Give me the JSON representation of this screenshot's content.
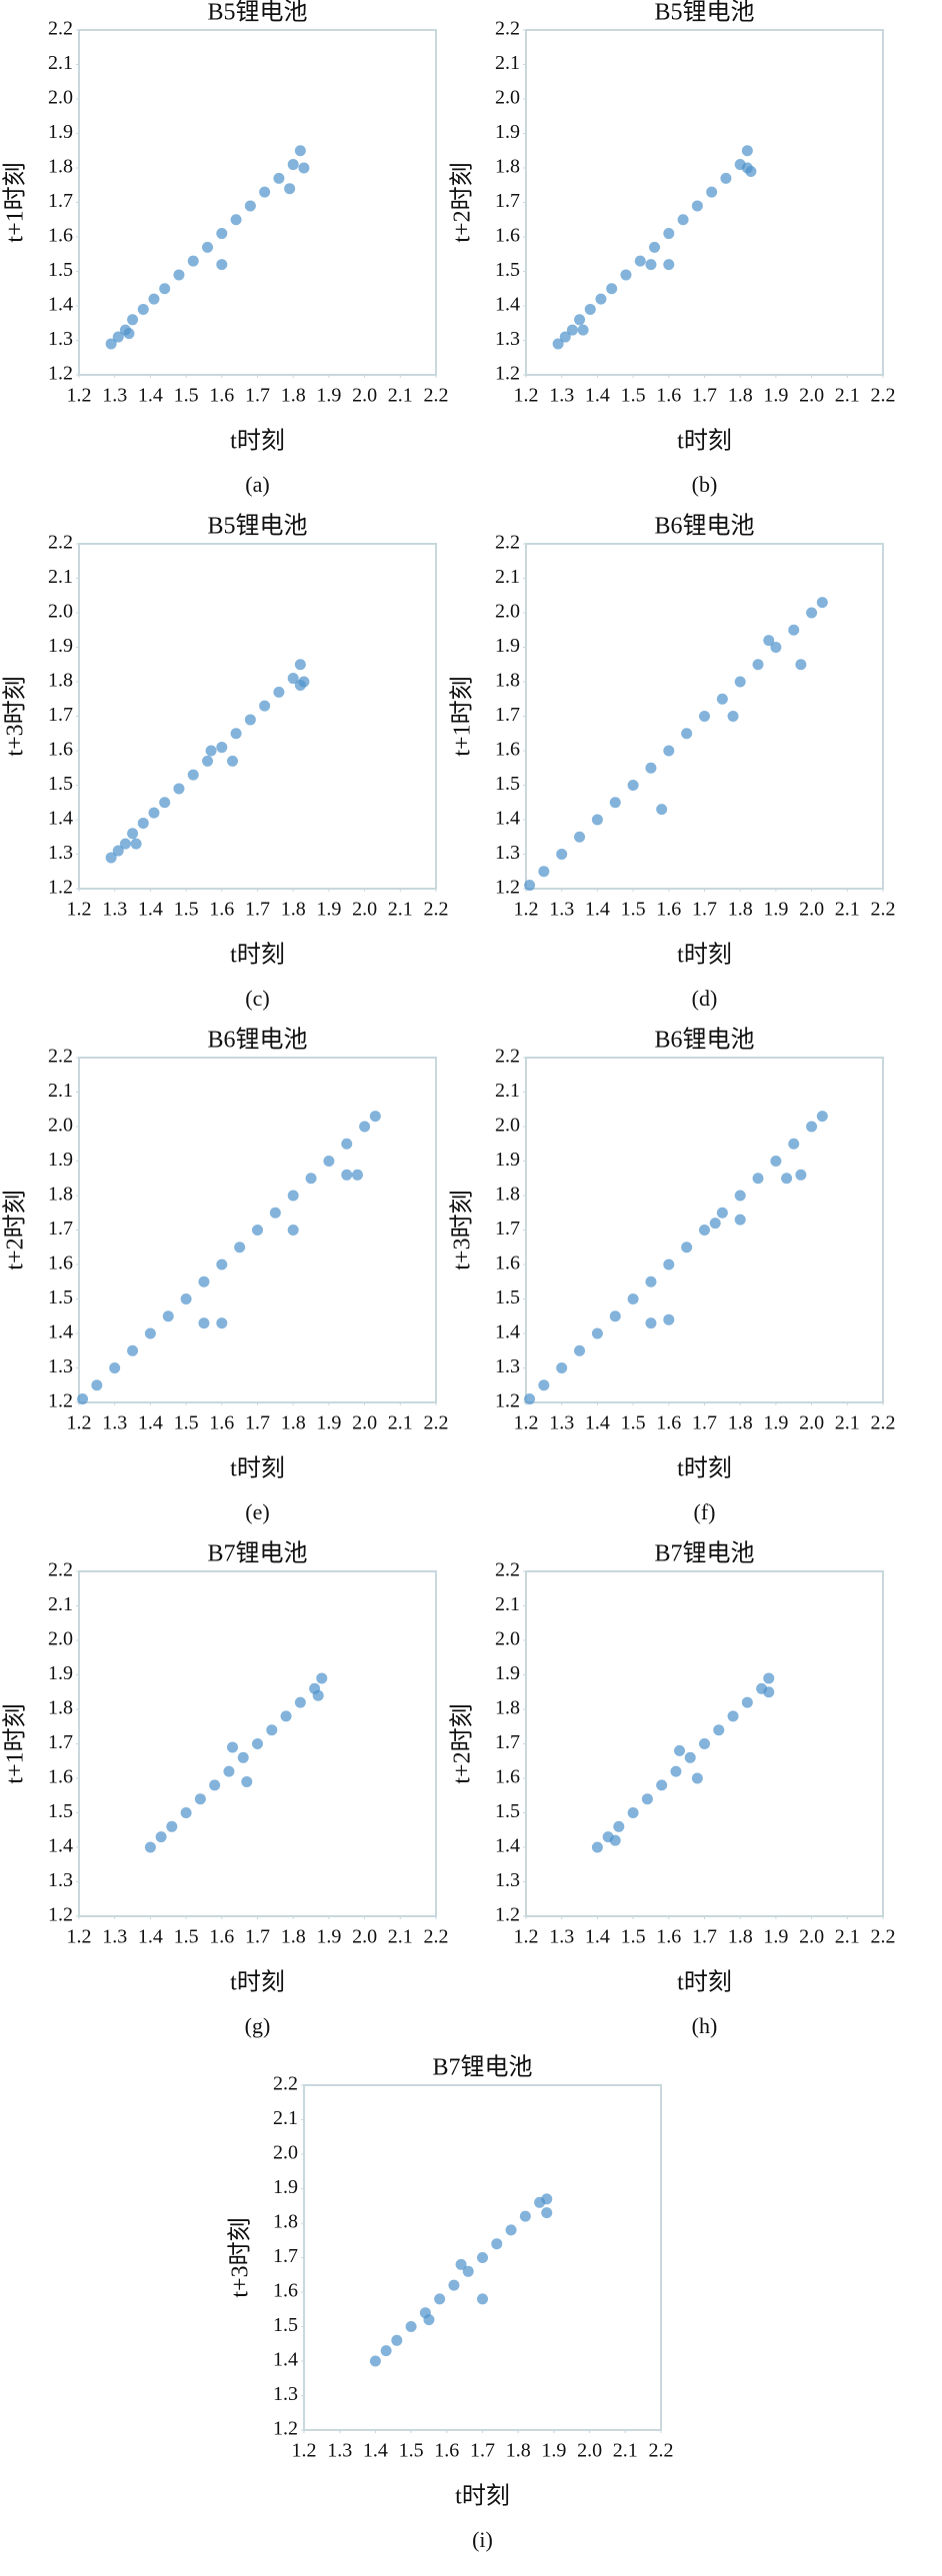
{
  "chart_data": [
    {
      "type": "scatter",
      "title": "B5锂电池",
      "xlabel": "t时刻",
      "ylabel": "t+1时刻",
      "caption": "(a)",
      "color": "#4f93cc",
      "x": [
        1.29,
        1.31,
        1.33,
        1.35,
        1.38,
        1.41,
        1.44,
        1.48,
        1.52,
        1.56,
        1.6,
        1.64,
        1.68,
        1.72,
        1.76,
        1.8,
        1.82,
        1.34,
        1.6,
        1.79,
        1.83
      ],
      "y": [
        1.29,
        1.31,
        1.33,
        1.36,
        1.39,
        1.42,
        1.45,
        1.49,
        1.53,
        1.57,
        1.61,
        1.65,
        1.69,
        1.73,
        1.77,
        1.81,
        1.85,
        1.32,
        1.52,
        1.74,
        1.8
      ],
      "xlim": [
        1.2,
        2.2
      ],
      "ylim": [
        1.2,
        2.2
      ],
      "xticks": [
        1.2,
        1.3,
        1.4,
        1.5,
        1.6,
        1.7,
        1.8,
        1.9,
        {
          "value": 2,
          "label": "2.0"
        },
        2.1,
        2.2
      ],
      "yticks": [
        1.2,
        1.3,
        1.4,
        1.5,
        1.6,
        1.7,
        1.8,
        1.9,
        {
          "value": 2,
          "label": "2.0"
        },
        2.1,
        2.2
      ]
    },
    {
      "type": "scatter",
      "title": "B5锂电池",
      "xlabel": "t时刻",
      "ylabel": "t+2时刻",
      "caption": "(b)",
      "color": "#4f93cc",
      "x": [
        1.29,
        1.31,
        1.33,
        1.35,
        1.38,
        1.41,
        1.44,
        1.48,
        1.52,
        1.56,
        1.6,
        1.64,
        1.68,
        1.72,
        1.76,
        1.8,
        1.82,
        1.55,
        1.6,
        1.36,
        1.82,
        1.83
      ],
      "y": [
        1.29,
        1.31,
        1.33,
        1.36,
        1.39,
        1.42,
        1.45,
        1.49,
        1.53,
        1.57,
        1.61,
        1.65,
        1.69,
        1.73,
        1.77,
        1.81,
        1.85,
        1.52,
        1.52,
        1.33,
        1.8,
        1.79
      ],
      "xlim": [
        1.2,
        2.2
      ],
      "ylim": [
        1.2,
        2.2
      ],
      "xticks": [
        1.2,
        1.3,
        1.4,
        1.5,
        1.6,
        1.7,
        1.8,
        1.9,
        {
          "value": 2,
          "label": "2.0"
        },
        2.1,
        2.2
      ],
      "yticks": [
        1.2,
        1.3,
        1.4,
        1.5,
        1.6,
        1.7,
        1.8,
        1.9,
        {
          "value": 2,
          "label": "2.0"
        },
        2.1,
        2.2
      ]
    },
    {
      "type": "scatter",
      "title": "B5锂电池",
      "xlabel": "t时刻",
      "ylabel": "t+3时刻",
      "caption": "(c)",
      "color": "#4f93cc",
      "x": [
        1.29,
        1.31,
        1.33,
        1.35,
        1.38,
        1.41,
        1.44,
        1.48,
        1.52,
        1.56,
        1.6,
        1.64,
        1.68,
        1.72,
        1.76,
        1.8,
        1.82,
        1.36,
        1.63,
        1.82,
        1.83,
        1.57
      ],
      "y": [
        1.29,
        1.31,
        1.33,
        1.36,
        1.39,
        1.42,
        1.45,
        1.49,
        1.53,
        1.57,
        1.61,
        1.65,
        1.69,
        1.73,
        1.77,
        1.81,
        1.85,
        1.33,
        1.57,
        1.79,
        1.8,
        1.6
      ],
      "xlim": [
        1.2,
        2.2
      ],
      "ylim": [
        1.2,
        2.2
      ],
      "xticks": [
        1.2,
        1.3,
        1.4,
        1.5,
        1.6,
        1.7,
        1.8,
        1.9,
        {
          "value": 2,
          "label": "2.0"
        },
        2.1,
        2.2
      ],
      "yticks": [
        1.2,
        1.3,
        1.4,
        1.5,
        1.6,
        1.7,
        1.8,
        1.9,
        {
          "value": 2,
          "label": "2.0"
        },
        2.1,
        2.2
      ]
    },
    {
      "type": "scatter",
      "title": "B6锂电池",
      "xlabel": "t时刻",
      "ylabel": "t+1时刻",
      "caption": "(d)",
      "color": "#4f93cc",
      "x": [
        1.21,
        1.25,
        1.3,
        1.35,
        1.4,
        1.45,
        1.5,
        1.55,
        1.6,
        1.65,
        1.7,
        1.75,
        1.8,
        1.85,
        1.9,
        1.95,
        2.0,
        2.03,
        1.58,
        1.78,
        1.97,
        1.88
      ],
      "y": [
        1.21,
        1.25,
        1.3,
        1.35,
        1.4,
        1.45,
        1.5,
        1.55,
        1.6,
        1.65,
        1.7,
        1.75,
        1.8,
        1.85,
        1.9,
        1.95,
        2.0,
        2.03,
        1.43,
        1.7,
        1.85,
        1.92
      ],
      "xlim": [
        1.2,
        2.2
      ],
      "ylim": [
        1.2,
        2.2
      ],
      "xticks": [
        1.2,
        1.3,
        1.4,
        1.5,
        1.6,
        1.7,
        1.8,
        1.9,
        {
          "value": 2,
          "label": "2.0"
        },
        2.1,
        2.2
      ],
      "yticks": [
        1.2,
        1.3,
        1.4,
        1.5,
        1.6,
        1.7,
        1.8,
        1.9,
        {
          "value": 2,
          "label": "2.0"
        },
        2.1,
        2.2
      ]
    },
    {
      "type": "scatter",
      "title": "B6锂电池",
      "xlabel": "t时刻",
      "ylabel": "t+2时刻",
      "caption": "(e)",
      "color": "#4f93cc",
      "x": [
        1.21,
        1.25,
        1.3,
        1.35,
        1.4,
        1.45,
        1.5,
        1.55,
        1.6,
        1.65,
        1.7,
        1.75,
        1.8,
        1.85,
        1.9,
        1.95,
        2.0,
        2.03,
        1.55,
        1.6,
        1.8,
        1.95,
        1.98
      ],
      "y": [
        1.21,
        1.25,
        1.3,
        1.35,
        1.4,
        1.45,
        1.5,
        1.55,
        1.6,
        1.65,
        1.7,
        1.75,
        1.8,
        1.85,
        1.9,
        1.95,
        2.0,
        2.03,
        1.43,
        1.43,
        1.7,
        1.86,
        1.86
      ],
      "xlim": [
        1.2,
        2.2
      ],
      "ylim": [
        1.2,
        2.2
      ],
      "xticks": [
        1.2,
        1.3,
        1.4,
        1.5,
        1.6,
        1.7,
        1.8,
        1.9,
        {
          "value": 2,
          "label": "2.0"
        },
        2.1,
        2.2
      ],
      "yticks": [
        1.2,
        1.3,
        1.4,
        1.5,
        1.6,
        1.7,
        1.8,
        1.9,
        {
          "value": 2,
          "label": "2.0"
        },
        2.1,
        2.2
      ]
    },
    {
      "type": "scatter",
      "title": "B6锂电池",
      "xlabel": "t时刻",
      "ylabel": "t+3时刻",
      "caption": "(f)",
      "color": "#4f93cc",
      "x": [
        1.21,
        1.25,
        1.3,
        1.35,
        1.4,
        1.45,
        1.5,
        1.55,
        1.6,
        1.65,
        1.7,
        1.75,
        1.8,
        1.85,
        1.9,
        1.95,
        2.0,
        2.03,
        1.55,
        1.6,
        1.8,
        1.97,
        1.93,
        1.73
      ],
      "y": [
        1.21,
        1.25,
        1.3,
        1.35,
        1.4,
        1.45,
        1.5,
        1.55,
        1.6,
        1.65,
        1.7,
        1.75,
        1.8,
        1.85,
        1.9,
        1.95,
        2.0,
        2.03,
        1.43,
        1.44,
        1.73,
        1.86,
        1.85,
        1.72
      ],
      "xlim": [
        1.2,
        2.2
      ],
      "ylim": [
        1.2,
        2.2
      ],
      "xticks": [
        1.2,
        1.3,
        1.4,
        1.5,
        1.6,
        1.7,
        1.8,
        1.9,
        {
          "value": 2,
          "label": "2.0"
        },
        2.1,
        2.2
      ],
      "yticks": [
        1.2,
        1.3,
        1.4,
        1.5,
        1.6,
        1.7,
        1.8,
        1.9,
        {
          "value": 2,
          "label": "2.0"
        },
        2.1,
        2.2
      ]
    },
    {
      "type": "scatter",
      "title": "B7锂电池",
      "xlabel": "t时刻",
      "ylabel": "t+1时刻",
      "caption": "(g)",
      "color": "#4f93cc",
      "x": [
        1.4,
        1.43,
        1.46,
        1.5,
        1.54,
        1.58,
        1.62,
        1.66,
        1.7,
        1.74,
        1.78,
        1.82,
        1.86,
        1.88,
        1.67,
        1.63,
        1.87
      ],
      "y": [
        1.4,
        1.43,
        1.46,
        1.5,
        1.54,
        1.58,
        1.62,
        1.66,
        1.7,
        1.74,
        1.78,
        1.82,
        1.86,
        1.89,
        1.59,
        1.69,
        1.84
      ],
      "xlim": [
        1.2,
        2.2
      ],
      "ylim": [
        1.2,
        2.2
      ],
      "xticks": [
        1.2,
        1.3,
        1.4,
        1.5,
        1.6,
        1.7,
        1.8,
        1.9,
        {
          "value": 2,
          "label": "2.0"
        },
        2.1,
        2.2
      ],
      "yticks": [
        1.2,
        1.3,
        1.4,
        1.5,
        1.6,
        1.7,
        1.8,
        1.9,
        {
          "value": 2,
          "label": "2.0"
        },
        2.1,
        2.2
      ]
    },
    {
      "type": "scatter",
      "title": "B7锂电池",
      "xlabel": "t时刻",
      "ylabel": "t+2时刻",
      "caption": "(h)",
      "color": "#4f93cc",
      "x": [
        1.4,
        1.43,
        1.46,
        1.5,
        1.54,
        1.58,
        1.62,
        1.66,
        1.7,
        1.74,
        1.78,
        1.82,
        1.86,
        1.88,
        1.63,
        1.68,
        1.45,
        1.88
      ],
      "y": [
        1.4,
        1.43,
        1.46,
        1.5,
        1.54,
        1.58,
        1.62,
        1.66,
        1.7,
        1.74,
        1.78,
        1.82,
        1.86,
        1.89,
        1.68,
        1.6,
        1.42,
        1.85
      ],
      "xlim": [
        1.2,
        2.2
      ],
      "ylim": [
        1.2,
        2.2
      ],
      "xticks": [
        1.2,
        1.3,
        1.4,
        1.5,
        1.6,
        1.7,
        1.8,
        1.9,
        {
          "value": 2,
          "label": "2.0"
        },
        2.1,
        2.2
      ],
      "yticks": [
        1.2,
        1.3,
        1.4,
        1.5,
        1.6,
        1.7,
        1.8,
        1.9,
        {
          "value": 2,
          "label": "2.0"
        },
        2.1,
        2.2
      ]
    },
    {
      "type": "scatter",
      "title": "B7锂电池",
      "xlabel": "t时刻",
      "ylabel": "t+3时刻",
      "caption": "(i)",
      "color": "#4f93cc",
      "x": [
        1.4,
        1.43,
        1.46,
        1.5,
        1.54,
        1.58,
        1.62,
        1.66,
        1.7,
        1.74,
        1.78,
        1.82,
        1.86,
        1.88,
        1.64,
        1.7,
        1.55,
        1.88
      ],
      "y": [
        1.4,
        1.43,
        1.46,
        1.5,
        1.54,
        1.58,
        1.62,
        1.66,
        1.7,
        1.74,
        1.78,
        1.82,
        1.86,
        1.87,
        1.68,
        1.58,
        1.52,
        1.83
      ],
      "xlim": [
        1.2,
        2.2
      ],
      "ylim": [
        1.2,
        2.2
      ],
      "xticks": [
        1.2,
        1.3,
        1.4,
        1.5,
        1.6,
        1.7,
        1.8,
        1.9,
        {
          "value": 2,
          "label": "2.0"
        },
        2.1,
        2.2
      ],
      "yticks": [
        1.2,
        1.3,
        1.4,
        1.5,
        1.6,
        1.7,
        1.8,
        1.9,
        {
          "value": 2,
          "label": "2.0"
        },
        2.1,
        2.2
      ]
    }
  ]
}
